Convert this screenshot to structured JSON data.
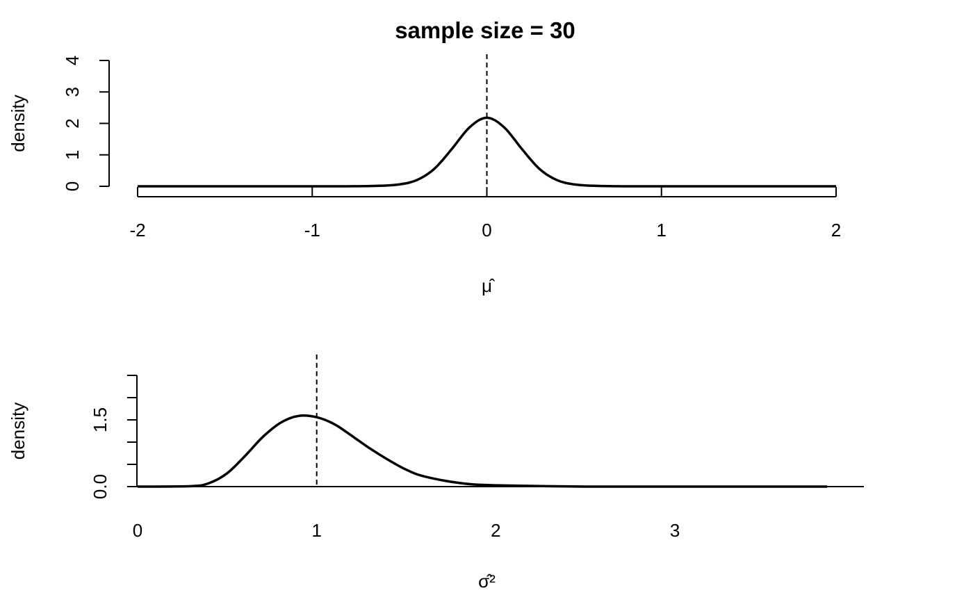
{
  "title": "sample size =  30",
  "chart_data": [
    {
      "type": "line",
      "title": "sample size =  30",
      "xlabel": "μ̂",
      "ylabel": "density",
      "xlim": [
        -2,
        2
      ],
      "ylim": [
        0,
        4
      ],
      "x_ticks": [
        -2,
        -1,
        0,
        1,
        2
      ],
      "y_ticks": [
        0,
        1,
        2,
        3,
        4
      ],
      "y_tick_labels": [
        "0",
        "1",
        "2",
        "3",
        "4"
      ],
      "reference_line": {
        "x": 0,
        "style": "dashed"
      },
      "grid": false,
      "series": [
        {
          "x": [
            -2,
            -1.5,
            -1,
            -0.8,
            -0.6,
            -0.5,
            -0.4,
            -0.3,
            -0.2,
            -0.1,
            0,
            0.1,
            0.2,
            0.3,
            0.4,
            0.5,
            0.6,
            0.8,
            1,
            1.5,
            2
          ],
          "y": [
            0,
            0,
            0,
            0,
            0.02,
            0.06,
            0.2,
            0.56,
            1.19,
            1.87,
            2.18,
            1.87,
            1.19,
            0.56,
            0.2,
            0.06,
            0.02,
            0,
            0,
            0,
            0
          ]
        }
      ]
    },
    {
      "type": "line",
      "title": "",
      "xlabel": "σ̂²",
      "ylabel": "density",
      "xlim": [
        0,
        3.9
      ],
      "ylim": [
        0,
        3
      ],
      "x_ticks": [
        0,
        1,
        2,
        3
      ],
      "y_ticks": [
        0,
        0.5,
        1,
        1.5,
        2,
        2.5
      ],
      "y_tick_labels": [
        "0.0",
        "",
        "",
        "1.5",
        "",
        ""
      ],
      "reference_line": {
        "x": 1,
        "style": "dashed"
      },
      "grid": false,
      "series": [
        {
          "x": [
            0,
            0.3,
            0.4,
            0.5,
            0.6,
            0.7,
            0.8,
            0.9,
            1.0,
            1.1,
            1.2,
            1.3,
            1.4,
            1.5,
            1.6,
            1.8,
            2.0,
            2.5,
            3.0,
            3.5,
            3.85
          ],
          "y": [
            0,
            0.01,
            0.08,
            0.3,
            0.69,
            1.12,
            1.44,
            1.59,
            1.56,
            1.4,
            1.13,
            0.85,
            0.6,
            0.38,
            0.23,
            0.08,
            0.03,
            0,
            0,
            0,
            0
          ]
        }
      ]
    }
  ]
}
